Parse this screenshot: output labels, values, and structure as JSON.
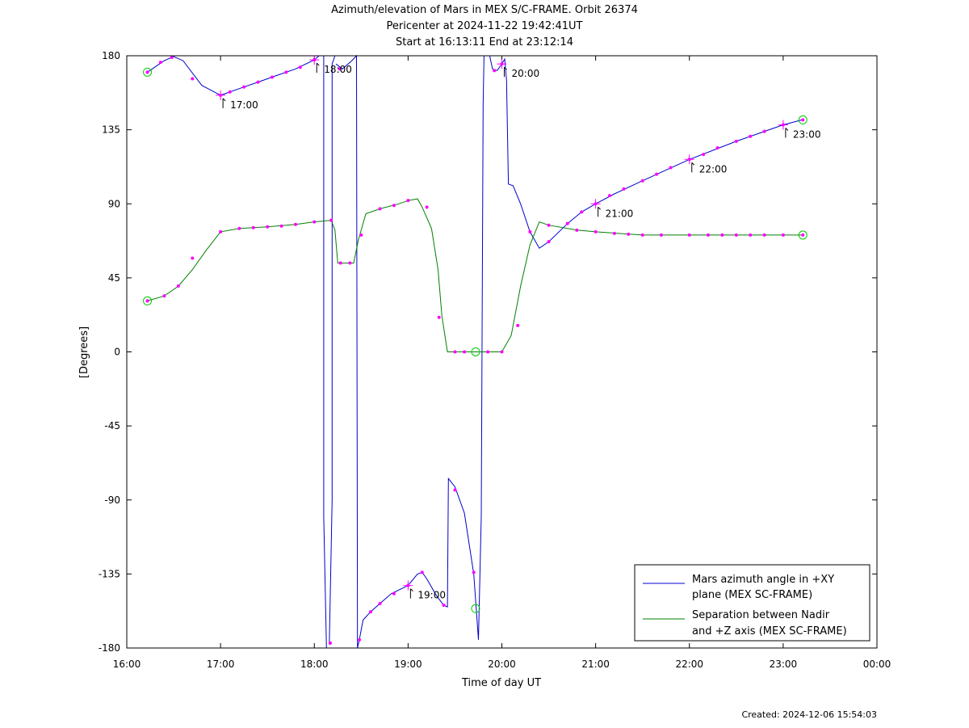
{
  "chart_data": {
    "type": "line",
    "title_lines": [
      "Azimuth/elevation of Mars in MEX S/C-FRAME.  Orbit 26374",
      "Pericenter at 2024-11-22 19:42:41UT",
      "Start at 16:13:11 End at 23:12:14"
    ],
    "xlabel": "Time of day UT",
    "ylabel": "[Degrees]",
    "xlim": [
      16.0,
      24.0
    ],
    "ylim": [
      -180,
      180
    ],
    "x_ticks": [
      {
        "v": 16,
        "label": "16:00"
      },
      {
        "v": 17,
        "label": "17:00"
      },
      {
        "v": 18,
        "label": "18:00"
      },
      {
        "v": 19,
        "label": "19:00"
      },
      {
        "v": 20,
        "label": "20:00"
      },
      {
        "v": 21,
        "label": "21:00"
      },
      {
        "v": 22,
        "label": "22:00"
      },
      {
        "v": 23,
        "label": "23:00"
      },
      {
        "v": 24,
        "label": "00:00"
      }
    ],
    "y_ticks": [
      180,
      135,
      90,
      45,
      0,
      -45,
      -90,
      -135,
      -180
    ],
    "grid": false,
    "legend_position": "bottom-right",
    "series": [
      {
        "name": "Mars azimuth angle in +XY plane (MEX SC-FRAME)",
        "legend_lines": [
          "Mars azimuth angle in +XY",
          "plane (MEX SC-FRAME)"
        ],
        "color": "#0000cc",
        "line": [
          [
            16.22,
            170
          ],
          [
            16.4,
            177
          ],
          [
            16.5,
            179.5
          ],
          [
            16.6,
            177
          ],
          [
            16.8,
            162
          ],
          [
            17.0,
            156
          ],
          [
            17.2,
            160
          ],
          [
            17.4,
            164
          ],
          [
            17.6,
            168
          ],
          [
            17.8,
            172
          ],
          [
            18.0,
            177.5
          ],
          [
            18.05,
            180
          ],
          null,
          [
            18.1,
            180
          ],
          [
            18.1,
            -100
          ],
          [
            18.13,
            -180
          ],
          null,
          [
            18.16,
            -178
          ],
          [
            18.19,
            -90
          ],
          [
            18.19,
            175
          ],
          [
            18.22,
            180
          ],
          null,
          [
            18.23,
            175
          ],
          [
            18.3,
            172
          ],
          [
            18.4,
            177
          ],
          [
            18.45,
            180
          ],
          [
            18.46,
            -180
          ],
          [
            18.48,
            -175
          ],
          [
            18.52,
            -163
          ],
          [
            18.6,
            -158
          ],
          [
            18.7,
            -153
          ],
          [
            18.82,
            -147
          ],
          [
            19.0,
            -142
          ],
          [
            19.1,
            -135
          ],
          [
            19.15,
            -134
          ],
          [
            19.2,
            -138
          ],
          [
            19.3,
            -148
          ],
          [
            19.38,
            -154
          ],
          [
            19.42,
            -155
          ],
          [
            19.43,
            -77
          ],
          [
            19.5,
            -82
          ],
          [
            19.6,
            -98
          ],
          [
            19.7,
            -135
          ],
          [
            19.75,
            -175
          ],
          [
            19.78,
            -100
          ],
          [
            19.8,
            150
          ],
          [
            19.81,
            180
          ],
          null,
          [
            19.87,
            180
          ],
          [
            19.9,
            172
          ],
          [
            19.95,
            171
          ],
          [
            20.0,
            175
          ],
          [
            20.03,
            178
          ],
          [
            20.05,
            165
          ],
          [
            20.07,
            102
          ],
          [
            20.12,
            101
          ],
          [
            20.2,
            90
          ],
          [
            20.3,
            73
          ],
          [
            20.4,
            63
          ],
          [
            20.5,
            67
          ],
          [
            20.7,
            78
          ],
          [
            20.85,
            85
          ],
          [
            21.0,
            90
          ],
          [
            21.2,
            96
          ],
          [
            21.5,
            104
          ],
          [
            22.0,
            117
          ],
          [
            22.5,
            128
          ],
          [
            23.0,
            138
          ],
          [
            23.2,
            141
          ]
        ],
        "markers": [
          [
            16.22,
            170
          ],
          [
            16.36,
            176
          ],
          [
            16.48,
            179
          ],
          [
            16.7,
            166
          ],
          [
            17.0,
            156
          ],
          [
            17.1,
            158
          ],
          [
            17.25,
            161
          ],
          [
            17.4,
            164
          ],
          [
            17.55,
            167
          ],
          [
            17.7,
            170
          ],
          [
            17.85,
            173
          ],
          [
            18.0,
            177.5
          ],
          [
            18.17,
            -177
          ],
          [
            18.27,
            172
          ],
          [
            18.48,
            -175
          ],
          [
            18.6,
            -158
          ],
          [
            18.7,
            -153
          ],
          [
            18.85,
            -147
          ],
          [
            19.0,
            -142
          ],
          [
            19.15,
            -134
          ],
          [
            19.38,
            -154
          ],
          [
            19.5,
            -84
          ],
          [
            19.7,
            -134
          ],
          [
            19.92,
            171
          ],
          [
            20.0,
            175
          ],
          [
            20.3,
            73
          ],
          [
            20.5,
            67
          ],
          [
            20.7,
            78
          ],
          [
            20.85,
            85
          ],
          [
            21.0,
            90
          ],
          [
            21.15,
            95
          ],
          [
            21.3,
            99
          ],
          [
            21.5,
            104
          ],
          [
            21.65,
            108
          ],
          [
            21.8,
            112
          ],
          [
            22.0,
            117
          ],
          [
            22.15,
            120
          ],
          [
            22.3,
            124
          ],
          [
            22.5,
            128
          ],
          [
            22.65,
            131
          ],
          [
            22.8,
            134
          ],
          [
            23.0,
            138
          ]
        ],
        "start_marker": [
          16.22,
          170
        ],
        "end_marker": [
          23.21,
          141
        ]
      },
      {
        "name": "Separation between Nadir and +Z axis (MEX SC-FRAME)",
        "legend_lines": [
          "Separation between Nadir",
          "and +Z axis (MEX SC-FRAME)"
        ],
        "color": "#008000",
        "line": [
          [
            16.22,
            31
          ],
          [
            16.4,
            34
          ],
          [
            16.55,
            40
          ],
          [
            16.7,
            50
          ],
          [
            16.85,
            62
          ],
          [
            17.0,
            73
          ],
          [
            17.2,
            75
          ],
          [
            17.5,
            76
          ],
          [
            17.8,
            77.5
          ],
          [
            18.0,
            79
          ],
          [
            18.18,
            80
          ],
          [
            18.22,
            74
          ],
          [
            18.25,
            54
          ],
          [
            18.3,
            54
          ],
          [
            18.42,
            54
          ],
          [
            18.47,
            68
          ],
          [
            18.55,
            84
          ],
          [
            18.7,
            87
          ],
          [
            18.9,
            90
          ],
          [
            19.0,
            92
          ],
          [
            19.1,
            93
          ],
          [
            19.15,
            88
          ],
          [
            19.25,
            75
          ],
          [
            19.32,
            50
          ],
          [
            19.36,
            22
          ],
          [
            19.42,
            0
          ],
          [
            19.6,
            0
          ],
          [
            19.8,
            0
          ],
          [
            20.0,
            0
          ],
          [
            20.1,
            10
          ],
          [
            20.2,
            40
          ],
          [
            20.3,
            65
          ],
          [
            20.4,
            79
          ],
          [
            20.5,
            77
          ],
          [
            20.8,
            74
          ],
          [
            21.0,
            73
          ],
          [
            21.5,
            71
          ],
          [
            22.0,
            71
          ],
          [
            22.5,
            71
          ],
          [
            23.0,
            71
          ],
          [
            23.2,
            71
          ]
        ],
        "markers": [
          [
            16.22,
            31
          ],
          [
            16.4,
            34
          ],
          [
            16.55,
            40
          ],
          [
            16.7,
            57
          ],
          [
            17.0,
            73
          ],
          [
            17.2,
            75
          ],
          [
            17.35,
            75.5
          ],
          [
            17.5,
            76
          ],
          [
            17.65,
            76.5
          ],
          [
            17.8,
            77.5
          ],
          [
            18.0,
            79
          ],
          [
            18.18,
            80
          ],
          [
            18.28,
            54
          ],
          [
            18.38,
            54
          ],
          [
            18.5,
            71
          ],
          [
            18.7,
            87
          ],
          [
            18.85,
            89
          ],
          [
            19.0,
            92
          ],
          [
            19.2,
            88
          ],
          [
            19.33,
            21
          ],
          [
            19.5,
            0
          ],
          [
            19.6,
            0
          ],
          [
            19.85,
            0
          ],
          [
            20.0,
            0
          ],
          [
            20.17,
            16
          ],
          [
            20.5,
            77
          ],
          [
            20.8,
            74
          ],
          [
            21.0,
            73
          ],
          [
            21.2,
            72
          ],
          [
            21.35,
            71.5
          ],
          [
            21.5,
            71
          ],
          [
            21.7,
            71
          ],
          [
            22.0,
            71
          ],
          [
            22.2,
            71
          ],
          [
            22.35,
            71
          ],
          [
            22.5,
            71
          ],
          [
            22.65,
            71
          ],
          [
            22.8,
            71
          ],
          [
            23.0,
            71
          ]
        ],
        "start_marker": [
          16.22,
          31
        ],
        "end_marker": [
          23.21,
          71
        ]
      }
    ],
    "extra_start_marker": [
      19.72,
      -156
    ],
    "extra_start_marker2": [
      19.72,
      0
    ],
    "hour_annotations": [
      {
        "x": 17,
        "y": 156,
        "label": "17:00"
      },
      {
        "x": 18,
        "y": 177.5,
        "label": "18:00"
      },
      {
        "x": 19,
        "y": -142,
        "label": "19:00"
      },
      {
        "x": 20,
        "y": 175,
        "label": "20:00"
      },
      {
        "x": 21,
        "y": 90,
        "label": "21:00"
      },
      {
        "x": 22,
        "y": 117,
        "label": "22:00"
      },
      {
        "x": 23,
        "y": 138,
        "label": "23:00"
      }
    ],
    "marker_color": "#ff00ff",
    "start_end_color": "#00cc00"
  },
  "footer": {
    "created": "Created: 2024-12-06 15:54:03"
  }
}
